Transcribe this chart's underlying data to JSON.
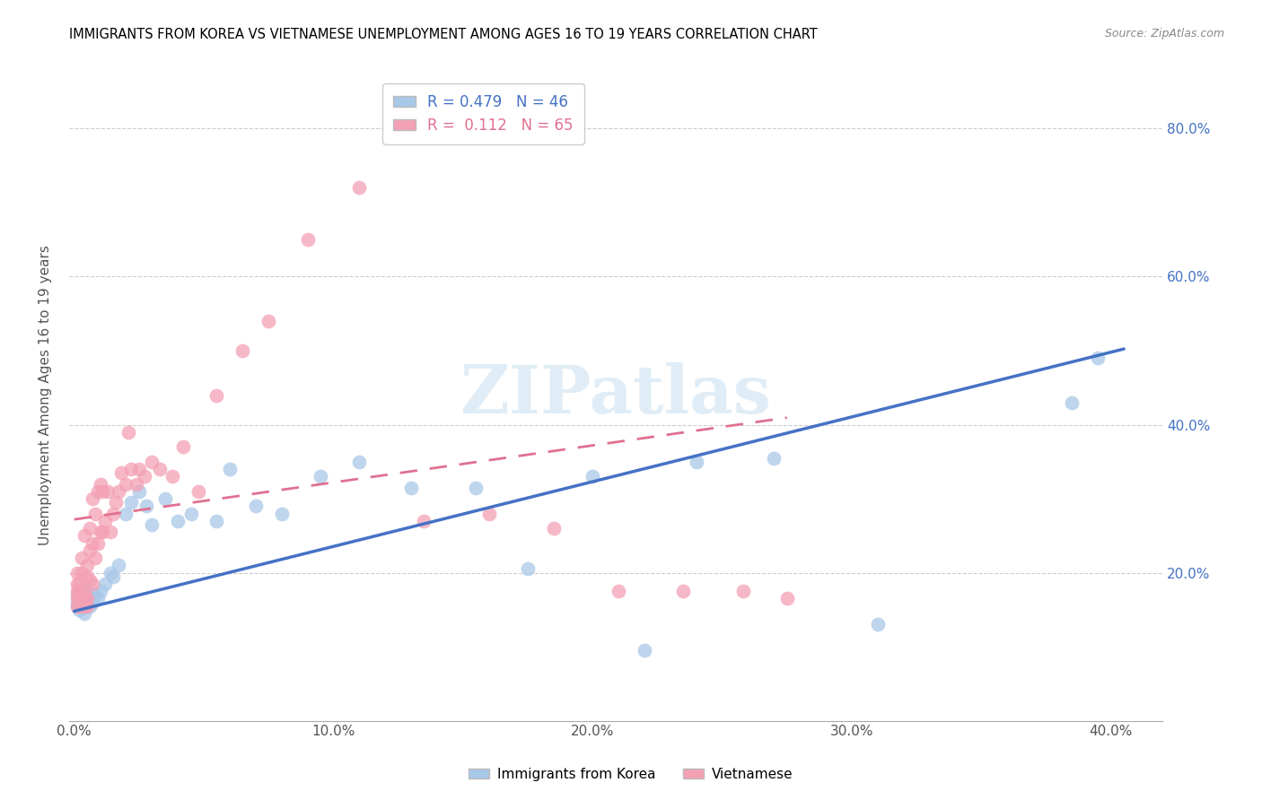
{
  "title": "IMMIGRANTS FROM KOREA VS VIETNAMESE UNEMPLOYMENT AMONG AGES 16 TO 19 YEARS CORRELATION CHART",
  "source": "Source: ZipAtlas.com",
  "ylim": [
    0.0,
    0.88
  ],
  "xlim": [
    -0.002,
    0.42
  ],
  "korea_R": 0.479,
  "korea_N": 46,
  "viet_R": 0.112,
  "viet_N": 65,
  "korea_color": "#a8c8e8",
  "viet_color": "#f4a0b5",
  "korea_line_color": "#4472c4",
  "viet_line_color": "#e07090",
  "legend_korea": "Immigrants from Korea",
  "legend_viet": "Vietnamese",
  "watermark": "ZIPatlas",
  "axis_label": "Unemployment Among Ages 16 to 19 years",
  "korea_x": [
    0.001,
    0.001,
    0.001,
    0.002,
    0.002,
    0.002,
    0.003,
    0.003,
    0.004,
    0.004,
    0.005,
    0.005,
    0.006,
    0.006,
    0.007,
    0.008,
    0.009,
    0.01,
    0.012,
    0.014,
    0.015,
    0.017,
    0.02,
    0.022,
    0.025,
    0.028,
    0.03,
    0.035,
    0.04,
    0.045,
    0.055,
    0.06,
    0.07,
    0.08,
    0.095,
    0.11,
    0.13,
    0.155,
    0.175,
    0.2,
    0.22,
    0.24,
    0.27,
    0.31,
    0.385,
    0.395
  ],
  "korea_y": [
    0.155,
    0.16,
    0.17,
    0.15,
    0.165,
    0.175,
    0.155,
    0.17,
    0.145,
    0.16,
    0.16,
    0.175,
    0.155,
    0.165,
    0.16,
    0.17,
    0.165,
    0.175,
    0.185,
    0.2,
    0.195,
    0.21,
    0.28,
    0.295,
    0.31,
    0.29,
    0.265,
    0.3,
    0.27,
    0.28,
    0.27,
    0.34,
    0.29,
    0.28,
    0.33,
    0.35,
    0.315,
    0.315,
    0.205,
    0.33,
    0.095,
    0.35,
    0.355,
    0.13,
    0.43,
    0.49
  ],
  "viet_x": [
    0.001,
    0.001,
    0.001,
    0.001,
    0.001,
    0.002,
    0.002,
    0.002,
    0.002,
    0.003,
    0.003,
    0.003,
    0.003,
    0.004,
    0.004,
    0.004,
    0.004,
    0.005,
    0.005,
    0.005,
    0.005,
    0.006,
    0.006,
    0.006,
    0.007,
    0.007,
    0.007,
    0.008,
    0.008,
    0.009,
    0.009,
    0.01,
    0.01,
    0.011,
    0.011,
    0.012,
    0.013,
    0.014,
    0.015,
    0.016,
    0.017,
    0.018,
    0.02,
    0.021,
    0.022,
    0.024,
    0.025,
    0.027,
    0.03,
    0.033,
    0.038,
    0.042,
    0.048,
    0.055,
    0.065,
    0.075,
    0.09,
    0.11,
    0.135,
    0.16,
    0.185,
    0.21,
    0.235,
    0.258,
    0.275
  ],
  "viet_y": [
    0.155,
    0.165,
    0.175,
    0.185,
    0.2,
    0.155,
    0.165,
    0.175,
    0.185,
    0.16,
    0.17,
    0.2,
    0.22,
    0.155,
    0.165,
    0.175,
    0.25,
    0.155,
    0.165,
    0.195,
    0.21,
    0.19,
    0.23,
    0.26,
    0.185,
    0.24,
    0.3,
    0.22,
    0.28,
    0.24,
    0.31,
    0.255,
    0.32,
    0.255,
    0.31,
    0.27,
    0.31,
    0.255,
    0.28,
    0.295,
    0.31,
    0.335,
    0.32,
    0.39,
    0.34,
    0.32,
    0.34,
    0.33,
    0.35,
    0.34,
    0.33,
    0.37,
    0.31,
    0.44,
    0.5,
    0.54,
    0.65,
    0.72,
    0.27,
    0.28,
    0.26,
    0.175,
    0.175,
    0.175,
    0.165
  ]
}
